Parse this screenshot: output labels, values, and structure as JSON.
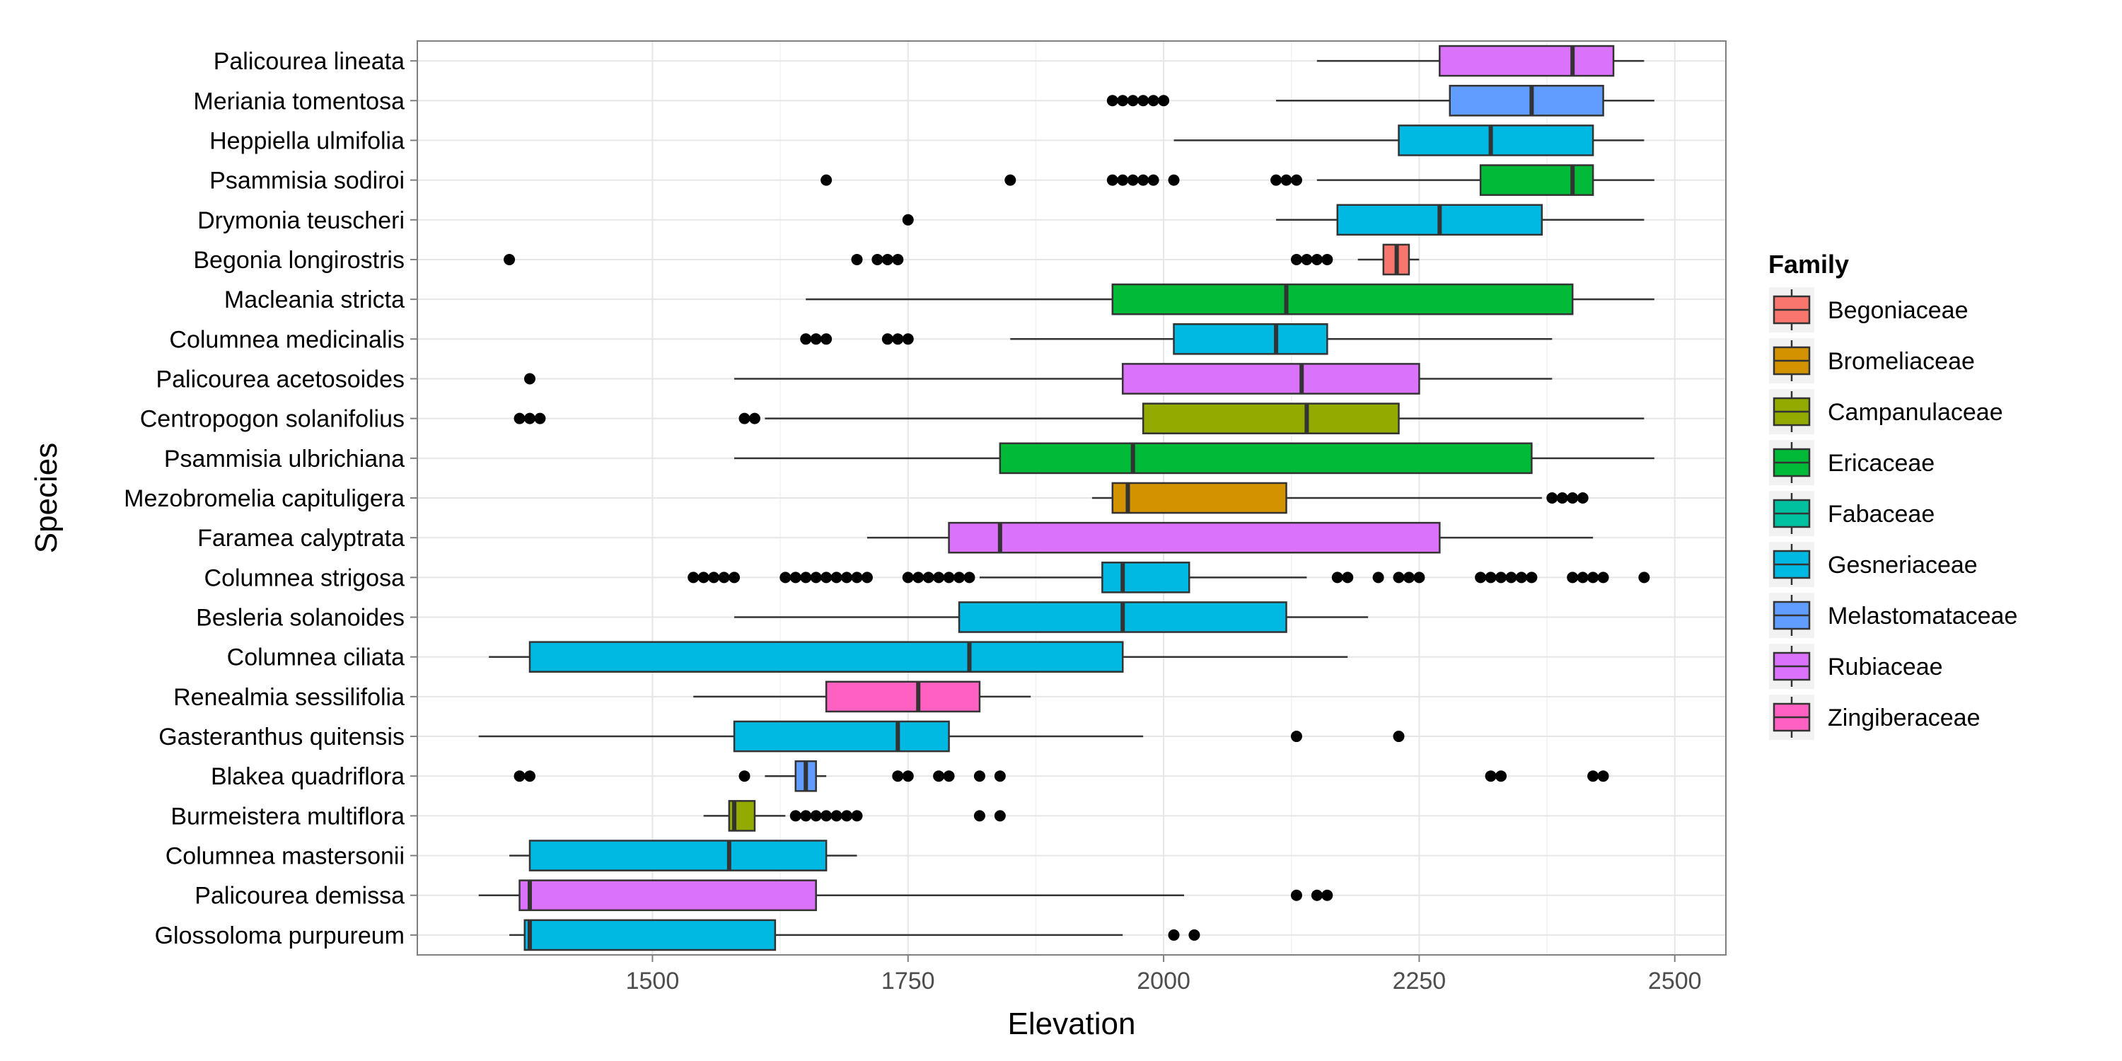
{
  "chart_data": {
    "type": "boxplot",
    "orientation": "horizontal",
    "title": "",
    "xlabel": "Elevation",
    "ylabel": "Species",
    "xlim": [
      1270,
      2550
    ],
    "x_ticks": [
      1500,
      1750,
      2000,
      2250,
      2500
    ],
    "grid": true,
    "legend": {
      "title": "Family",
      "position": "right",
      "items": [
        {
          "name": "Begoniaceae",
          "color": "#F8766D"
        },
        {
          "name": "Bromeliaceae",
          "color": "#D39200"
        },
        {
          "name": "Campanulaceae",
          "color": "#93AA00"
        },
        {
          "name": "Ericaceae",
          "color": "#00BA38"
        },
        {
          "name": "Fabaceae",
          "color": "#00C19F"
        },
        {
          "name": "Gesneriaceae",
          "color": "#00B9E3"
        },
        {
          "name": "Melastomataceae",
          "color": "#619CFF"
        },
        {
          "name": "Rubiaceae",
          "color": "#DB72FB"
        },
        {
          "name": "Zingiberaceae",
          "color": "#FF61C3"
        }
      ]
    },
    "series": [
      {
        "species": "Palicourea lineata",
        "family": "Rubiaceae",
        "whisker_low": 2150,
        "q1": 2270,
        "median": 2400,
        "q3": 2440,
        "whisker_high": 2470,
        "outliers": []
      },
      {
        "species": "Meriania tomentosa",
        "family": "Melastomataceae",
        "whisker_low": 2110,
        "q1": 2280,
        "median": 2360,
        "q3": 2430,
        "whisker_high": 2480,
        "outliers": [
          1950,
          1960,
          1970,
          1980,
          1990,
          2000
        ]
      },
      {
        "species": "Heppiella ulmifolia",
        "family": "Gesneriaceae",
        "whisker_low": 2010,
        "q1": 2230,
        "median": 2320,
        "q3": 2420,
        "whisker_high": 2470,
        "outliers": []
      },
      {
        "species": "Psammisia sodiroi",
        "family": "Ericaceae",
        "whisker_low": 2150,
        "q1": 2310,
        "median": 2400,
        "q3": 2420,
        "whisker_high": 2480,
        "outliers": [
          1670,
          1850,
          1950,
          1960,
          1970,
          1980,
          1990,
          2010,
          2110,
          2120,
          2130
        ]
      },
      {
        "species": "Drymonia teuscheri",
        "family": "Gesneriaceae",
        "whisker_low": 2110,
        "q1": 2170,
        "median": 2270,
        "q3": 2370,
        "whisker_high": 2470,
        "outliers": [
          1750
        ]
      },
      {
        "species": "Begonia longirostris",
        "family": "Begoniaceae",
        "whisker_low": 2190,
        "q1": 2215,
        "median": 2228,
        "q3": 2240,
        "whisker_high": 2250,
        "outliers": [
          1360,
          1700,
          1720,
          1730,
          1740,
          2130,
          2140,
          2150,
          2160
        ]
      },
      {
        "species": "Macleania stricta",
        "family": "Ericaceae",
        "whisker_low": 1650,
        "q1": 1950,
        "median": 2120,
        "q3": 2400,
        "whisker_high": 2480,
        "outliers": []
      },
      {
        "species": "Columnea medicinalis",
        "family": "Gesneriaceae",
        "whisker_low": 1850,
        "q1": 2010,
        "median": 2110,
        "q3": 2160,
        "whisker_high": 2380,
        "outliers": [
          1650,
          1660,
          1670,
          1730,
          1740,
          1750
        ]
      },
      {
        "species": "Palicourea acetosoides",
        "family": "Rubiaceae",
        "whisker_low": 1580,
        "q1": 1960,
        "median": 2135,
        "q3": 2250,
        "whisker_high": 2380,
        "outliers": [
          1380
        ]
      },
      {
        "species": "Centropogon solanifolius",
        "family": "Campanulaceae",
        "whisker_low": 1610,
        "q1": 1980,
        "median": 2140,
        "q3": 2230,
        "whisker_high": 2470,
        "outliers": [
          1370,
          1380,
          1390,
          1590,
          1600
        ]
      },
      {
        "species": "Psammisia ulbrichiana",
        "family": "Ericaceae",
        "whisker_low": 1580,
        "q1": 1840,
        "median": 1970,
        "q3": 2360,
        "whisker_high": 2480,
        "outliers": []
      },
      {
        "species": "Mezobromelia capituligera",
        "family": "Bromeliaceae",
        "whisker_low": 1930,
        "q1": 1950,
        "median": 1965,
        "q3": 2120,
        "whisker_high": 2370,
        "outliers": [
          2380,
          2390,
          2400,
          2410
        ]
      },
      {
        "species": "Faramea calyptrata",
        "family": "Rubiaceae",
        "whisker_low": 1710,
        "q1": 1790,
        "median": 1840,
        "q3": 2270,
        "whisker_high": 2420,
        "outliers": []
      },
      {
        "species": "Columnea strigosa",
        "family": "Gesneriaceae",
        "whisker_low": 1820,
        "q1": 1940,
        "median": 1960,
        "q3": 2025,
        "whisker_high": 2140,
        "outliers": [
          1540,
          1550,
          1560,
          1570,
          1580,
          1630,
          1640,
          1650,
          1660,
          1670,
          1680,
          1690,
          1700,
          1710,
          1750,
          1760,
          1770,
          1780,
          1790,
          1800,
          1810,
          2170,
          2180,
          2210,
          2230,
          2240,
          2250,
          2310,
          2320,
          2330,
          2340,
          2350,
          2360,
          2400,
          2410,
          2420,
          2430,
          2470
        ]
      },
      {
        "species": "Besleria solanoides",
        "family": "Gesneriaceae",
        "whisker_low": 1580,
        "q1": 1800,
        "median": 1960,
        "q3": 2120,
        "whisker_high": 2200,
        "outliers": []
      },
      {
        "species": "Columnea ciliata",
        "family": "Gesneriaceae",
        "whisker_low": 1340,
        "q1": 1380,
        "median": 1810,
        "q3": 1960,
        "whisker_high": 2180,
        "outliers": []
      },
      {
        "species": "Renealmia sessilifolia",
        "family": "Zingiberaceae",
        "whisker_low": 1540,
        "q1": 1670,
        "median": 1760,
        "q3": 1820,
        "whisker_high": 1870,
        "outliers": []
      },
      {
        "species": "Gasteranthus quitensis",
        "family": "Gesneriaceae",
        "whisker_low": 1330,
        "q1": 1580,
        "median": 1740,
        "q3": 1790,
        "whisker_high": 1980,
        "outliers": [
          2130,
          2230
        ]
      },
      {
        "species": "Blakea quadriflora",
        "family": "Melastomataceae",
        "whisker_low": 1610,
        "q1": 1640,
        "median": 1650,
        "q3": 1660,
        "whisker_high": 1670,
        "outliers": [
          1370,
          1380,
          1590,
          1740,
          1750,
          1780,
          1790,
          1820,
          1840,
          2320,
          2330,
          2420,
          2430
        ]
      },
      {
        "species": "Burmeistera multiflora",
        "family": "Campanulaceae",
        "whisker_low": 1550,
        "q1": 1575,
        "median": 1580,
        "q3": 1600,
        "whisker_high": 1630,
        "outliers": [
          1640,
          1650,
          1660,
          1670,
          1680,
          1690,
          1700,
          1820,
          1840
        ]
      },
      {
        "species": "Columnea mastersonii",
        "family": "Gesneriaceae",
        "whisker_low": 1360,
        "q1": 1380,
        "median": 1575,
        "q3": 1670,
        "whisker_high": 1700,
        "outliers": []
      },
      {
        "species": "Palicourea demissa",
        "family": "Rubiaceae",
        "whisker_low": 1330,
        "q1": 1370,
        "median": 1380,
        "q3": 1660,
        "whisker_high": 2020,
        "outliers": [
          2130,
          2150,
          2160
        ]
      },
      {
        "species": "Glossoloma purpureum",
        "family": "Gesneriaceae",
        "whisker_low": 1360,
        "q1": 1375,
        "median": 1380,
        "q3": 1620,
        "whisker_high": 1960,
        "outliers": [
          2010,
          2030
        ]
      }
    ]
  }
}
